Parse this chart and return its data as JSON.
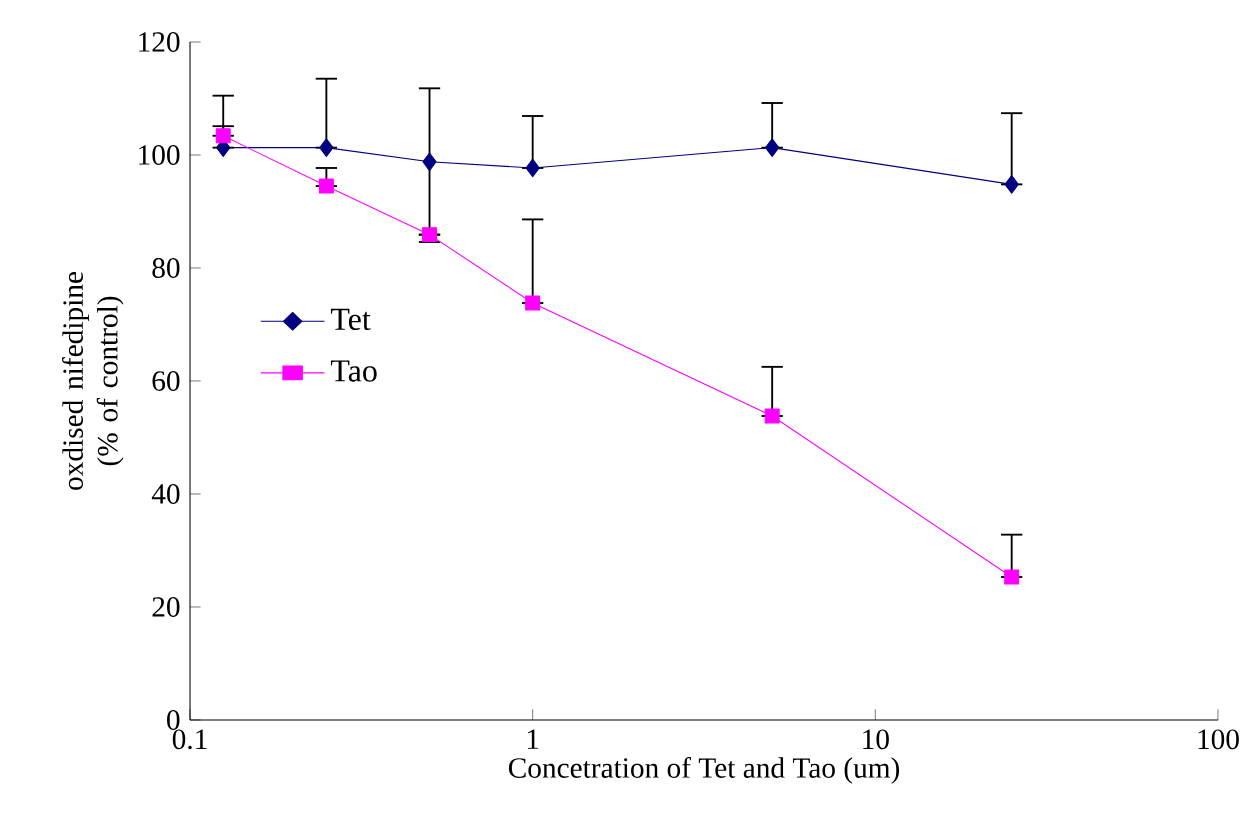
{
  "chart_data": {
    "type": "line",
    "xlabel": "Concetration of Tet and Tao (um)",
    "ylabel": "oxdised nifedipine (% of control)",
    "x": [
      0.125,
      0.25,
      0.5,
      1,
      5,
      25
    ],
    "series": [
      {
        "name": "Tet",
        "color": "#000080",
        "marker": "diamond",
        "values": [
          101.3,
          101.3,
          98.8,
          97.7,
          101.3,
          94.8
        ],
        "errors": [
          [
            101.3,
            110.5
          ],
          [
            101.3,
            113.5
          ],
          [
            84.6,
            111.8
          ],
          [
            97.7,
            106.9
          ],
          [
            101.3,
            109.2
          ],
          [
            94.8,
            107.4
          ]
        ]
      },
      {
        "name": "Tao",
        "color": "#ff00ff",
        "marker": "square",
        "values": [
          103.4,
          94.5,
          85.9,
          73.8,
          53.8,
          25.3
        ],
        "errors": [
          [
            103.4,
            105.1
          ],
          [
            94.5,
            97.7
          ],
          null,
          [
            73.8,
            88.6
          ],
          [
            53.8,
            62.5
          ],
          [
            25.3,
            32.8
          ]
        ]
      }
    ],
    "log": "x",
    "xlim": [
      0.1,
      100
    ],
    "xticks": [
      0.1,
      1,
      10,
      100
    ],
    "ylim": [
      0,
      120
    ],
    "yticks": [
      0,
      20,
      40,
      60,
      80,
      100,
      120
    ],
    "legend": "left",
    "grid": false
  }
}
